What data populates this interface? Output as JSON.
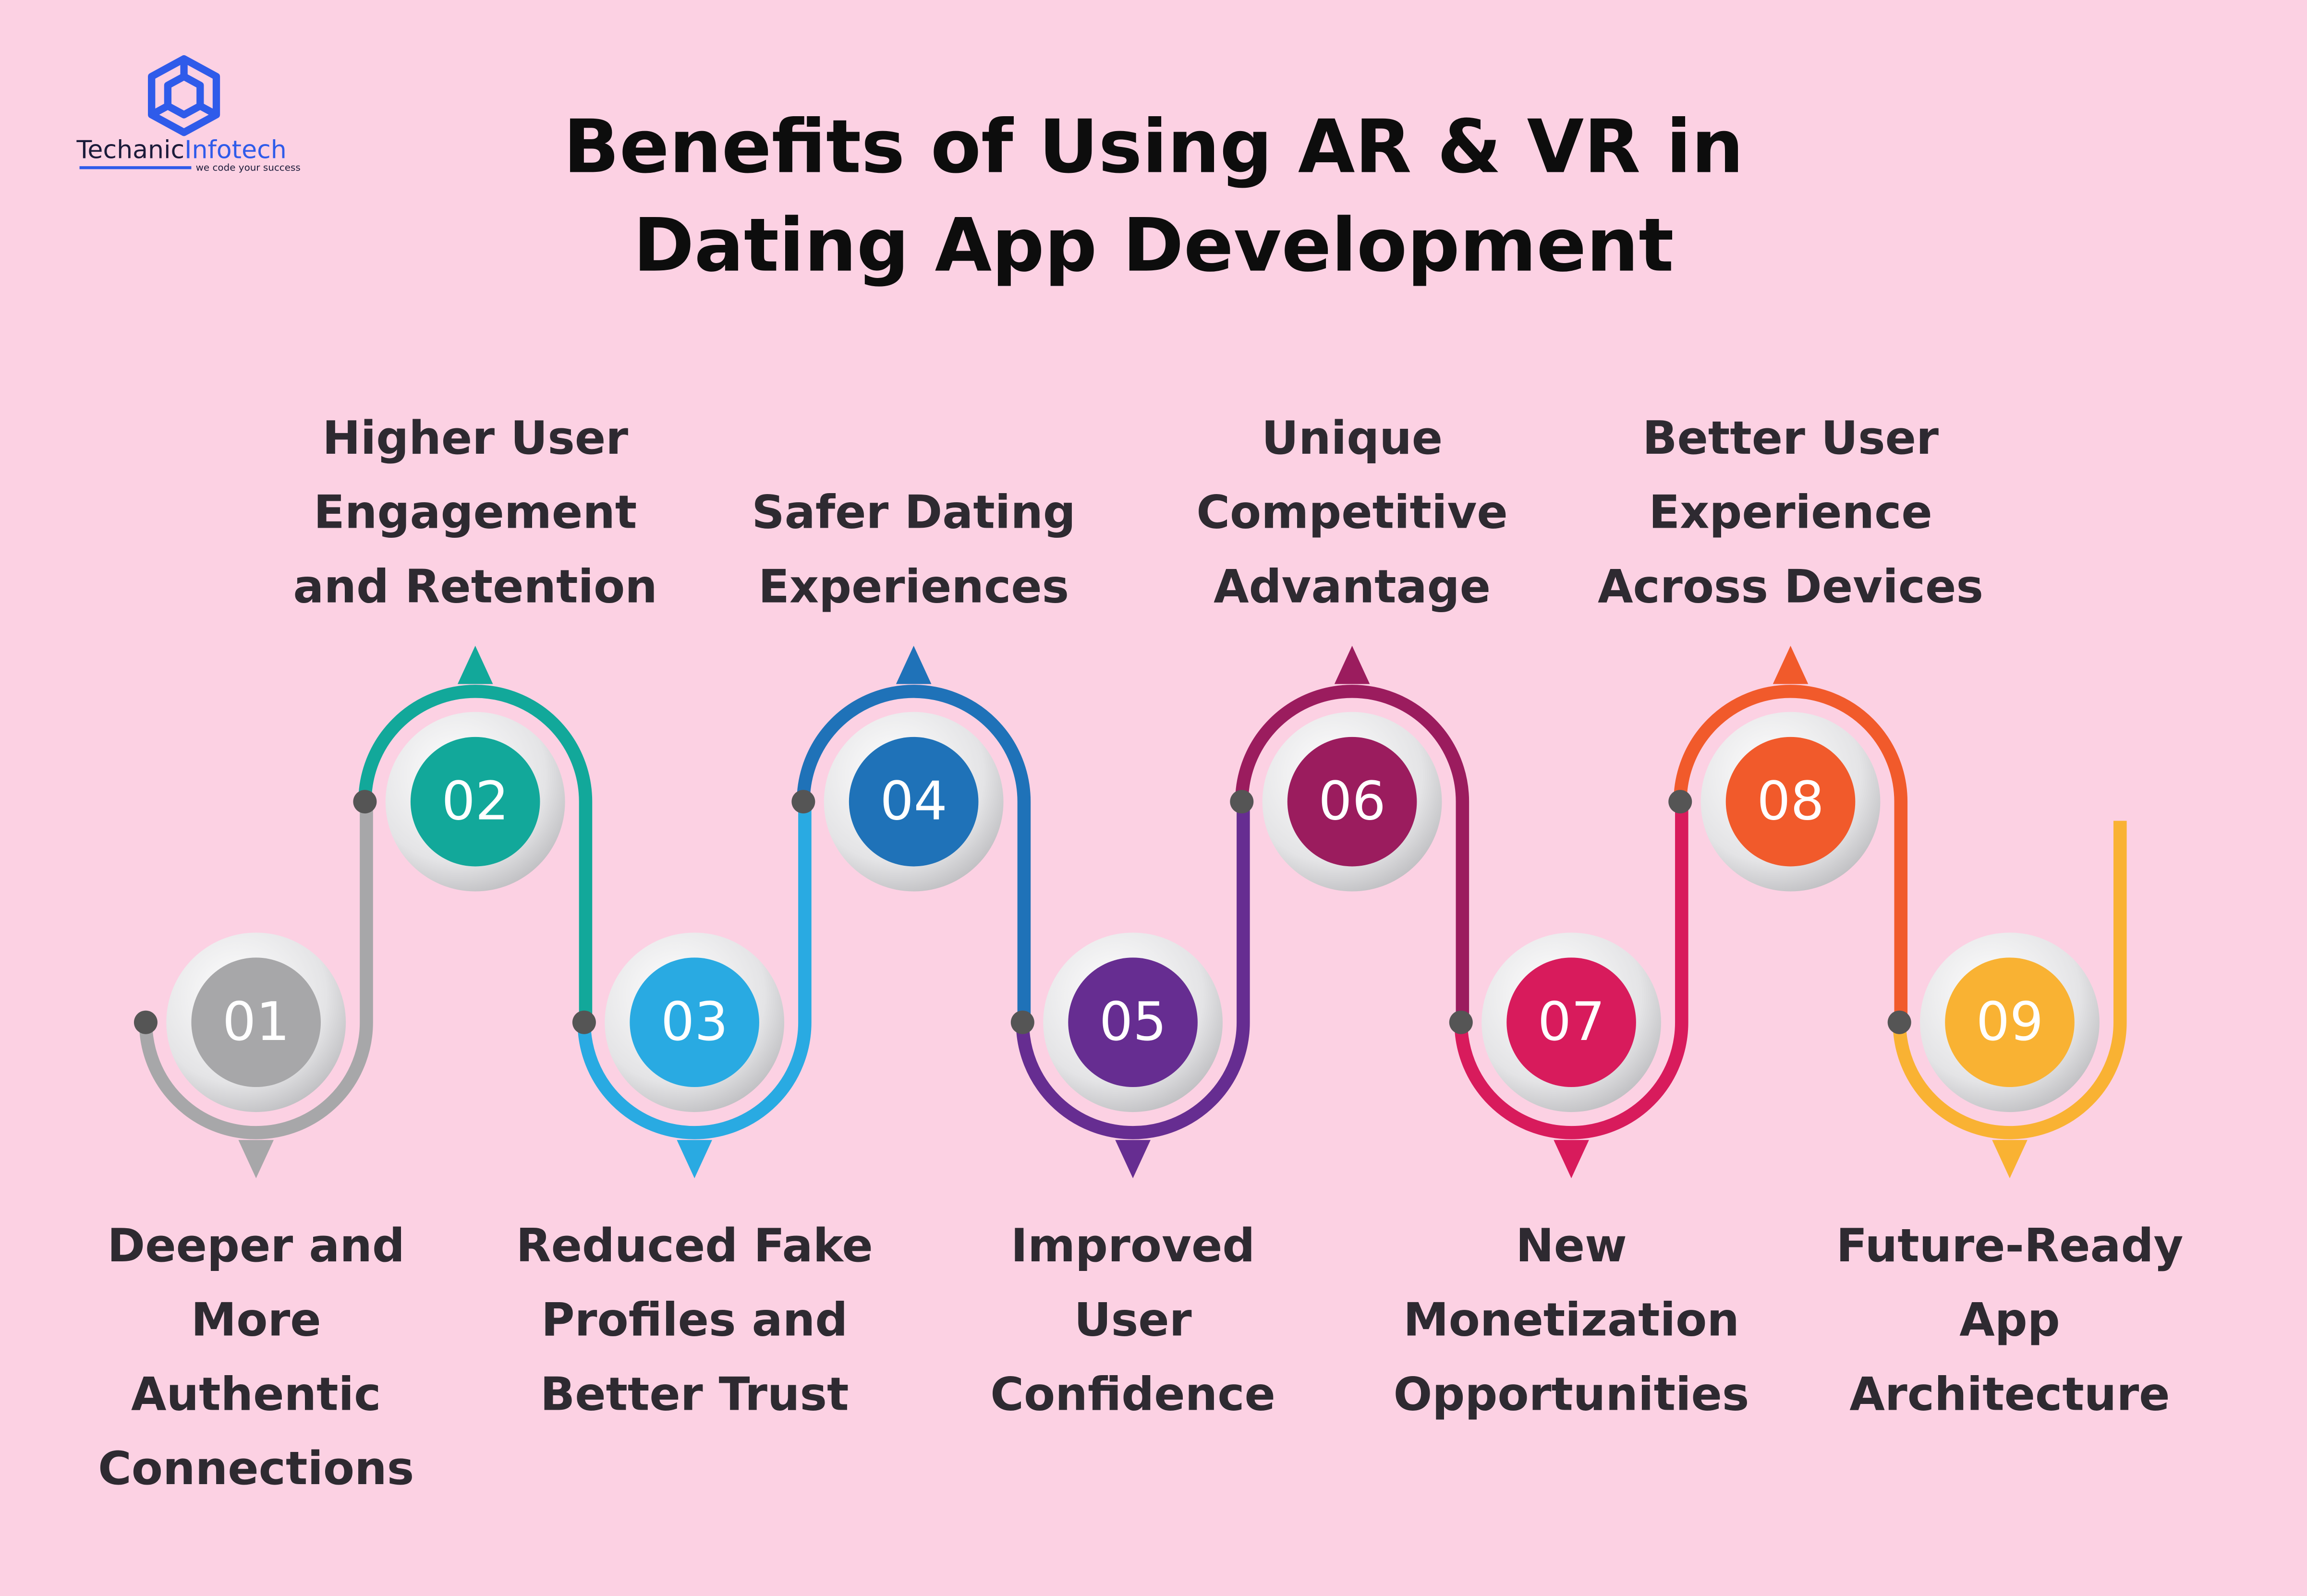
{
  "logo": {
    "name_part1": "Techanic",
    "name_part2": "Infotech",
    "tagline": "we code your success"
  },
  "title": {
    "line1": "Benefits of Using AR & VR in",
    "line2": "Dating App Development"
  },
  "steps": [
    {
      "number": "01",
      "color": "#a7a7a9",
      "label_lines": [
        "Deeper and",
        "More",
        "Authentic",
        "Connections"
      ]
    },
    {
      "number": "02",
      "color": "#12a89a",
      "label_lines": [
        "Higher User",
        "Engagement",
        "and Retention"
      ]
    },
    {
      "number": "03",
      "color": "#29aae2",
      "label_lines": [
        "Reduced Fake",
        "Profiles and",
        "Better Trust"
      ]
    },
    {
      "number": "04",
      "color": "#1f72b8",
      "label_lines": [
        "Safer Dating",
        "Experiences"
      ]
    },
    {
      "number": "05",
      "color": "#662d91",
      "label_lines": [
        "Improved",
        "User",
        "Confidence"
      ]
    },
    {
      "number": "06",
      "color": "#9b1c5e",
      "label_lines": [
        "Unique",
        "Competitive",
        "Advantage"
      ]
    },
    {
      "number": "07",
      "color": "#d81b5c",
      "label_lines": [
        "New",
        "Monetization",
        "Opportunities"
      ]
    },
    {
      "number": "08",
      "color": "#f15a2b",
      "label_lines": [
        "Better User",
        "Experience",
        "Across Devices"
      ]
    },
    {
      "number": "09",
      "color": "#f9b233",
      "label_lines": [
        "Future-Ready",
        "App",
        "Architecture"
      ]
    }
  ]
}
